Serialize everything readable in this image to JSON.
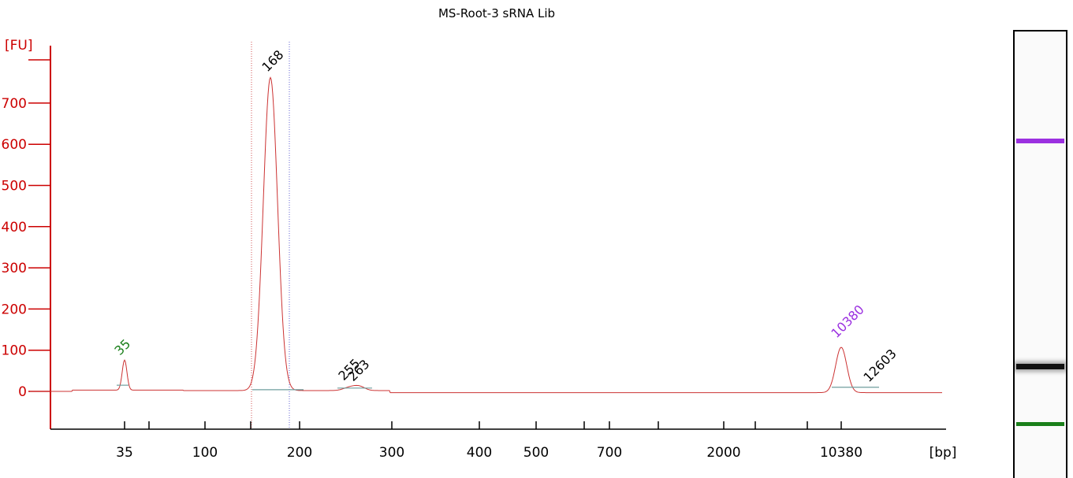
{
  "chart_data": {
    "type": "line",
    "title": "MS-Root-3 sRNA Lib",
    "ylabel": "[FU]",
    "xlabel": "[bp]",
    "ylim": [
      -85,
      840
    ],
    "y_ticks": [
      0,
      100,
      200,
      300,
      400,
      500,
      600,
      700
    ],
    "x_tick_labels": [
      "35",
      "100",
      "200",
      "300",
      "400",
      "500",
      "700",
      "2000",
      "10380"
    ],
    "series": [
      {
        "points": [
          [
            35,
            15
          ],
          [
            100,
            -3
          ],
          [
            140,
            2
          ],
          [
            168,
            760
          ],
          [
            200,
            2
          ],
          [
            255,
            8
          ],
          [
            263,
            9
          ],
          [
            300,
            2
          ],
          [
            2000,
            -4
          ],
          [
            10380,
            110
          ],
          [
            12603,
            2
          ]
        ]
      }
    ],
    "peak_labels": [
      {
        "text": "35",
        "color": "#1a7f1a"
      },
      {
        "text": "168",
        "color": "#000000"
      },
      {
        "text": "255",
        "color": "#000000"
      },
      {
        "text": "263",
        "color": "#000000"
      },
      {
        "text": "10380",
        "color": "#9b30e0"
      },
      {
        "text": "12603",
        "color": "#000000"
      }
    ],
    "colors": {
      "axis": "#cc0000",
      "trace": "#cc3333",
      "marker_low": "#1a7f1a",
      "marker_high": "#9b30e0"
    }
  },
  "gel_bands": [
    {
      "name": "upper-marker",
      "color": "#9b30e0"
    },
    {
      "name": "sample",
      "color": "#111111"
    },
    {
      "name": "lower-marker",
      "color": "#1a7f1a"
    }
  ]
}
